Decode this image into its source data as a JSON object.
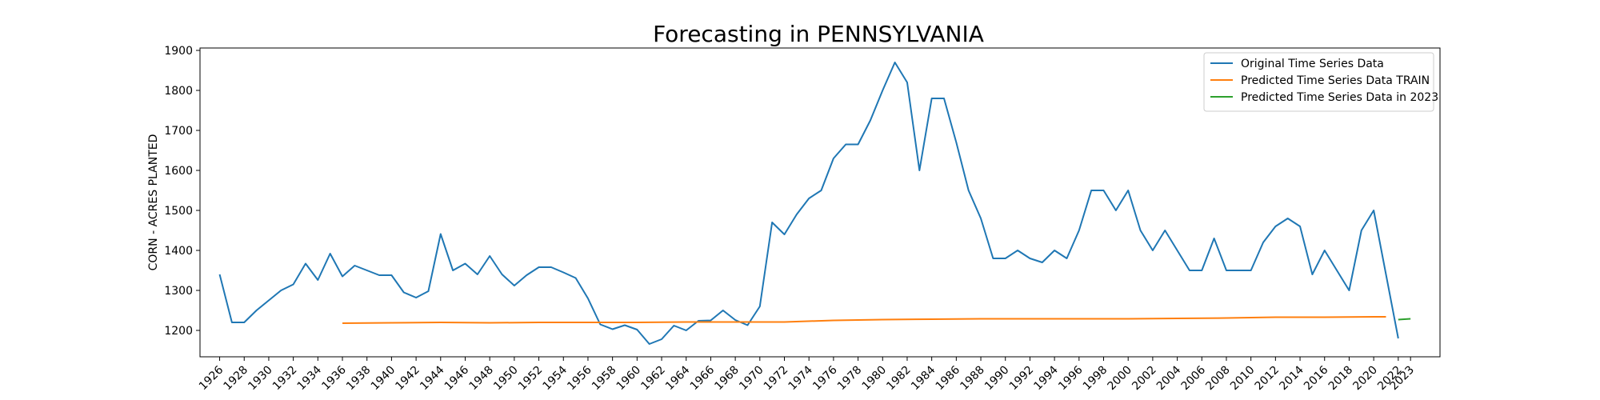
{
  "chart_data": {
    "type": "line",
    "title": "Forecasting in PENNSYLVANIA",
    "xlabel": "",
    "ylabel": "CORN - ACRES PLANTED",
    "xlim": [
      1924.4,
      2025.4
    ],
    "ylim": [
      1134,
      1906
    ],
    "x_ticks": [
      1926,
      1928,
      1930,
      1932,
      1934,
      1936,
      1938,
      1940,
      1942,
      1944,
      1946,
      1948,
      1950,
      1952,
      1954,
      1956,
      1958,
      1960,
      1962,
      1964,
      1966,
      1968,
      1970,
      1972,
      1974,
      1976,
      1978,
      1980,
      1982,
      1984,
      1986,
      1988,
      1990,
      1992,
      1994,
      1996,
      1998,
      2000,
      2002,
      2004,
      2006,
      2008,
      2010,
      2012,
      2014,
      2016,
      2018,
      2020,
      2022,
      2023
    ],
    "y_ticks": [
      1200,
      1300,
      1400,
      1500,
      1600,
      1700,
      1800,
      1900
    ],
    "legend_position": "top-right",
    "grid": false,
    "series": [
      {
        "name": "Original Time Series Data",
        "color": "#1f77b4",
        "x": [
          1926,
          1927,
          1928,
          1929,
          1930,
          1931,
          1932,
          1933,
          1934,
          1935,
          1936,
          1937,
          1938,
          1939,
          1940,
          1941,
          1942,
          1943,
          1944,
          1945,
          1946,
          1947,
          1948,
          1949,
          1950,
          1951,
          1952,
          1953,
          1954,
          1955,
          1956,
          1957,
          1958,
          1959,
          1960,
          1961,
          1962,
          1963,
          1964,
          1965,
          1966,
          1967,
          1968,
          1969,
          1970,
          1971,
          1972,
          1973,
          1974,
          1975,
          1976,
          1977,
          1978,
          1979,
          1980,
          1981,
          1982,
          1983,
          1984,
          1985,
          1986,
          1987,
          1988,
          1989,
          1990,
          1991,
          1992,
          1993,
          1994,
          1995,
          1996,
          1997,
          1998,
          1999,
          2000,
          2001,
          2002,
          2003,
          2004,
          2005,
          2006,
          2007,
          2008,
          2009,
          2010,
          2011,
          2012,
          2013,
          2014,
          2015,
          2016,
          2017,
          2018,
          2019,
          2020,
          2021,
          2022
        ],
        "y": [
          1340,
          1220,
          1220,
          1250,
          1275,
          1300,
          1315,
          1367,
          1326,
          1392,
          1335,
          1362,
          1350,
          1338,
          1338,
          1295,
          1282,
          1298,
          1441,
          1350,
          1367,
          1340,
          1386,
          1340,
          1312,
          1338,
          1358,
          1358,
          1345,
          1331,
          1280,
          1215,
          1203,
          1213,
          1202,
          1166,
          1178,
          1212,
          1200,
          1224,
          1225,
          1250,
          1226,
          1213,
          1260,
          1470,
          1440,
          1490,
          1530,
          1550,
          1630,
          1665,
          1665,
          1725,
          1800,
          1870,
          1820,
          1600,
          1780,
          1780,
          1670,
          1550,
          1480,
          1380,
          1380,
          1400,
          1380,
          1370,
          1400,
          1380,
          1450,
          1550,
          1550,
          1500,
          1550,
          1450,
          1400,
          1450,
          1400,
          1350,
          1350,
          1430,
          1350,
          1350,
          1350,
          1420,
          1460,
          1480,
          1460,
          1340,
          1400,
          1350,
          1300,
          1450,
          1500,
          1340,
          1180
        ]
      },
      {
        "name": "Predicted Time Series Data TRAIN",
        "color": "#ff7f0e",
        "x": [
          1936,
          1940,
          1944,
          1948,
          1952,
          1956,
          1960,
          1964,
          1968,
          1972,
          1976,
          1980,
          1984,
          1988,
          1992,
          1996,
          2000,
          2004,
          2008,
          2012,
          2016,
          2020,
          2021
        ],
        "y": [
          1218,
          1219,
          1220,
          1219,
          1220,
          1220,
          1220,
          1221,
          1221,
          1221,
          1225,
          1227,
          1228,
          1229,
          1229,
          1229,
          1229,
          1230,
          1231,
          1233,
          1233,
          1234,
          1234
        ]
      },
      {
        "name": "Predicted Time Series Data in 2023",
        "color": "#2ca02c",
        "x": [
          2022,
          2023
        ],
        "y": [
          1227,
          1229
        ]
      }
    ]
  }
}
